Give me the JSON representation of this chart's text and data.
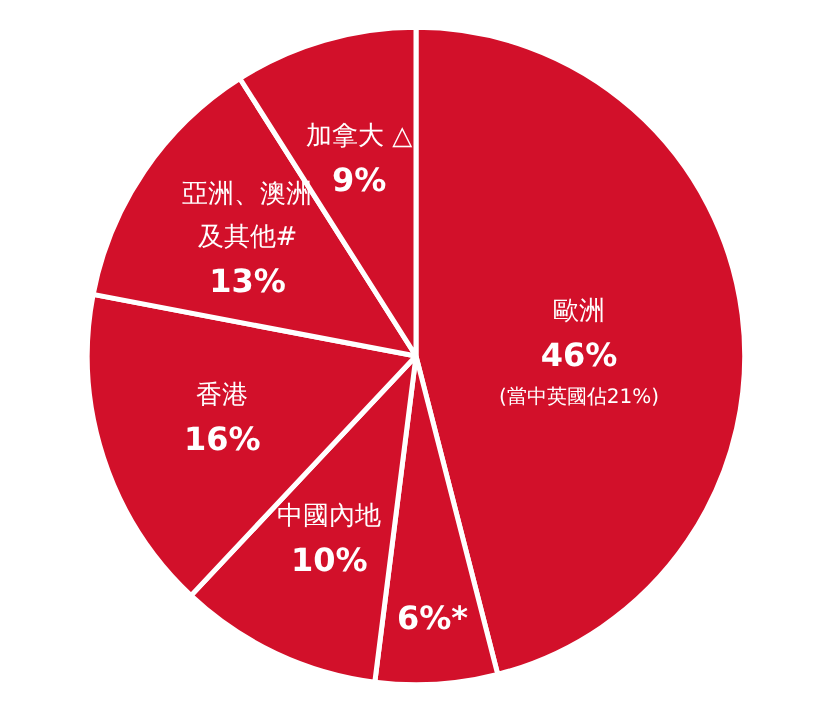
{
  "chart_data": {
    "type": "pie",
    "categories": [
      "歐洲",
      null,
      "中國內地",
      "香港",
      "亞洲、澳洲及其他#",
      "加拿大 △"
    ],
    "values": [
      46,
      6,
      10,
      16,
      13,
      9
    ],
    "colors": [
      "#d2102a",
      "#d2102a",
      "#d2102a",
      "#d2102a",
      "#d2102a",
      "#d2102a"
    ],
    "value_labels": [
      "46%",
      "6%*",
      "10%",
      "16%",
      "13%",
      "9%"
    ],
    "annotations": [
      "(當中英國佔21%)"
    ]
  }
}
